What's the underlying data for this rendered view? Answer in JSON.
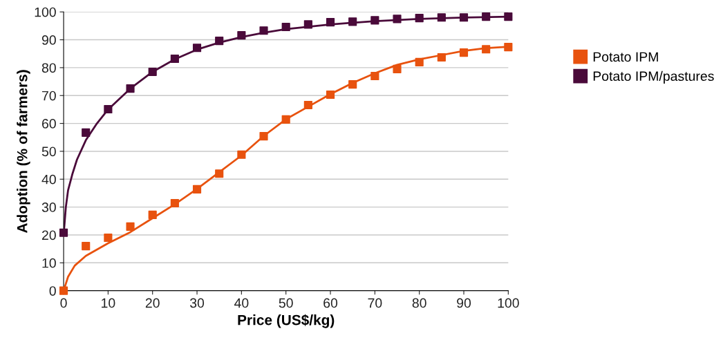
{
  "chart_data": {
    "type": "scatter",
    "xlabel": "Price (US$/kg)",
    "ylabel": "Adoption (% of farmers)",
    "xlim": [
      0,
      100
    ],
    "ylim": [
      0,
      100
    ],
    "xticks": [
      0,
      10,
      20,
      30,
      40,
      50,
      60,
      70,
      80,
      90,
      100
    ],
    "yticks": [
      0,
      10,
      20,
      30,
      40,
      50,
      60,
      70,
      80,
      90,
      100
    ],
    "grid": "y",
    "legend": "right",
    "series": [
      {
        "name": "Potato IPM",
        "marker": "square",
        "color": "#e8520e",
        "x": [
          0,
          5,
          10,
          15,
          20,
          25,
          30,
          35,
          40,
          45,
          50,
          55,
          60,
          65,
          70,
          75,
          80,
          85,
          90,
          95,
          100
        ],
        "values": [
          0,
          16,
          19,
          23,
          27.2,
          31.4,
          36.4,
          42,
          48.8,
          55.4,
          61.4,
          66.6,
          70.3,
          74,
          77,
          79.5,
          82,
          83.7,
          85.4,
          86.6,
          87.4
        ]
      },
      {
        "name": "Potato IPM/pastures",
        "marker": "square",
        "color": "#4a0a3a",
        "x": [
          0,
          5,
          10,
          15,
          20,
          25,
          30,
          35,
          40,
          45,
          50,
          55,
          60,
          65,
          70,
          75,
          80,
          85,
          90,
          95,
          100
        ],
        "values": [
          20.8,
          56.7,
          65.1,
          72.5,
          78.5,
          83.2,
          87.1,
          89.6,
          91.6,
          93.3,
          94.6,
          95.5,
          96.3,
          96.5,
          97,
          97.5,
          97.8,
          98,
          98,
          98.3,
          98.3
        ]
      },
      {
        "type": "line",
        "marker": "none",
        "color": "#e8520e",
        "x": [
          0,
          1,
          2.5,
          5,
          10,
          15,
          20,
          25,
          30,
          35,
          40,
          45,
          50,
          55,
          60,
          65,
          70,
          75,
          80,
          85,
          90,
          95,
          100
        ],
        "values": [
          0,
          5,
          9,
          12.5,
          17,
          21,
          26,
          31,
          36.5,
          42.5,
          48.5,
          55.5,
          61.5,
          66,
          70.5,
          74.5,
          78,
          81,
          83,
          84.5,
          86,
          87,
          87.5
        ]
      },
      {
        "type": "line",
        "marker": "none",
        "color": "#4a0a3a",
        "x": [
          0,
          0.5,
          1,
          2,
          3,
          5,
          7.5,
          10,
          15,
          20,
          25,
          30,
          35,
          40,
          45,
          50,
          60,
          70,
          80,
          90,
          100
        ],
        "values": [
          20,
          30,
          36,
          42,
          47,
          54,
          60,
          65,
          72.5,
          78.5,
          83,
          86.5,
          89,
          91,
          92.5,
          93.8,
          95.5,
          96.7,
          97.5,
          98,
          98.3
        ]
      }
    ]
  }
}
